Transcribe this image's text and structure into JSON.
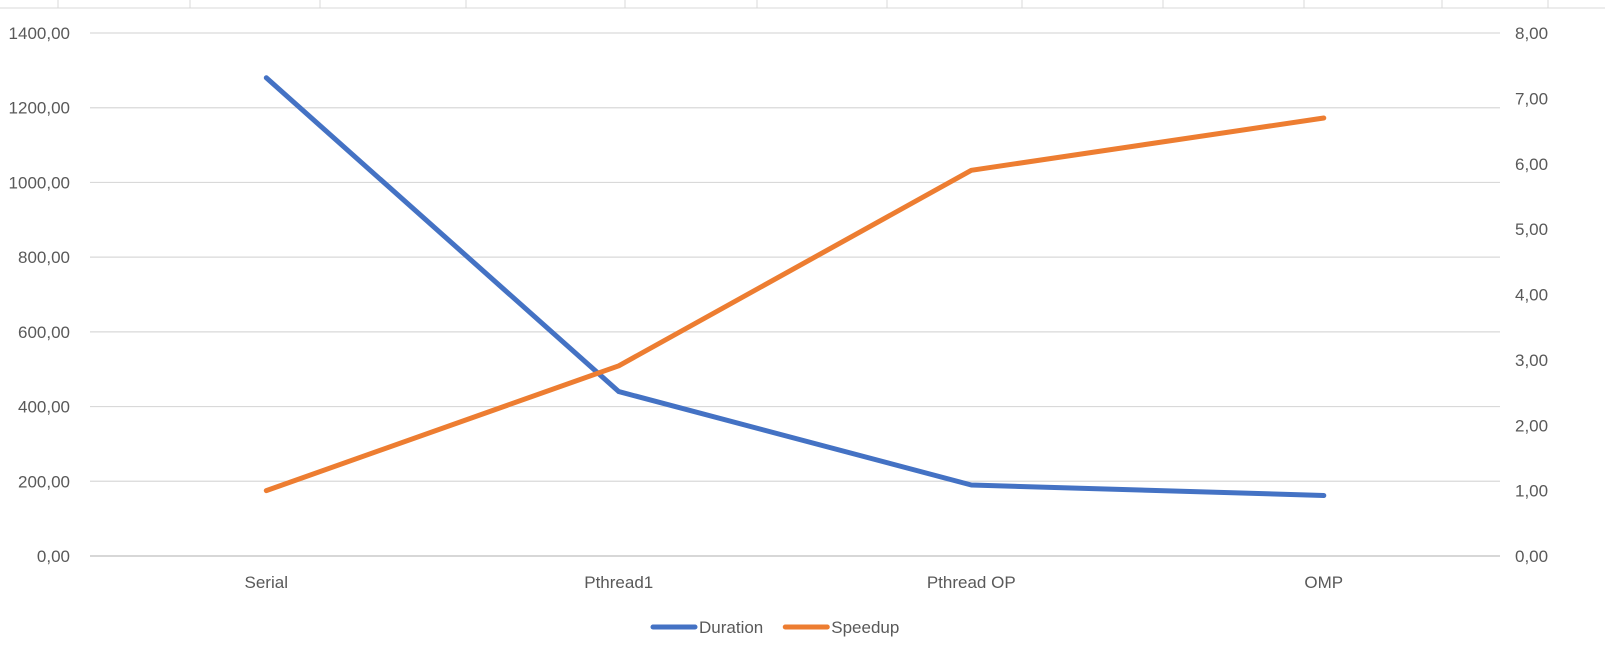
{
  "chart_data": {
    "type": "line",
    "categories": [
      "Serial",
      "Pthread1",
      "Pthread OP",
      "OMP"
    ],
    "series": [
      {
        "name": "Duration",
        "axis": "left",
        "color": "#4472C4",
        "values": [
          1280,
          440,
          190,
          162
        ]
      },
      {
        "name": "Speedup",
        "axis": "right",
        "color": "#ED7D31",
        "values": [
          1.0,
          2.91,
          5.9,
          6.7
        ]
      }
    ],
    "y_left": {
      "min": 0,
      "max": 1400,
      "step": 200,
      "tick_labels": [
        "0,00",
        "200,00",
        "400,00",
        "600,00",
        "800,00",
        "1000,00",
        "1200,00",
        "1400,00"
      ]
    },
    "y_right": {
      "min": 0,
      "max": 8,
      "step": 1,
      "tick_labels": [
        "0,00",
        "1,00",
        "2,00",
        "3,00",
        "4,00",
        "5,00",
        "6,00",
        "7,00",
        "8,00"
      ]
    },
    "grid": true,
    "legend_position": "bottom"
  }
}
